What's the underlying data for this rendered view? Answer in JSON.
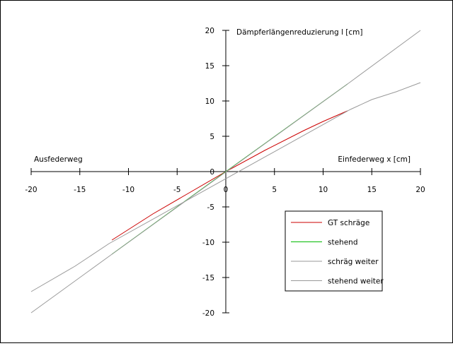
{
  "chart_data": {
    "type": "line",
    "title": "",
    "ylabel": "Dämpferlängenreduzierung l [cm]",
    "xlabel_right": "Einfederweg x [cm]",
    "xlabel_left": "Ausfederweg",
    "xlim": [
      -20,
      20
    ],
    "ylim": [
      -20,
      20
    ],
    "xticks": [
      {
        "value": -20,
        "label": "-20"
      },
      {
        "value": -15,
        "label": "-15"
      },
      {
        "value": -10,
        "label": "-10"
      },
      {
        "value": -5,
        "label": "-5"
      },
      {
        "value": 0,
        "label": "0"
      },
      {
        "value": 5,
        "label": "5"
      },
      {
        "value": 10,
        "label": "10"
      },
      {
        "value": 15,
        "label": "15"
      },
      {
        "value": 20,
        "label": "20"
      }
    ],
    "yticks": [
      {
        "value": 20,
        "label": "20"
      },
      {
        "value": 15,
        "label": "15"
      },
      {
        "value": 10,
        "label": "10"
      },
      {
        "value": 5,
        "label": "5"
      },
      {
        "value": 0,
        "label": "0"
      },
      {
        "value": -5,
        "label": "-5"
      },
      {
        "value": -10,
        "label": "-10"
      },
      {
        "value": -15,
        "label": "-15"
      },
      {
        "value": -20,
        "label": "-20"
      }
    ],
    "grid": false,
    "legend_position": "bottom-right",
    "series": [
      {
        "name": "GT schräge",
        "color": "#cc0000",
        "points": [
          [
            -11.7,
            -9.7
          ],
          [
            -7.5,
            -6.0
          ],
          [
            -4.0,
            -3.2
          ],
          [
            0,
            0
          ],
          [
            4.0,
            3.0
          ],
          [
            8.0,
            5.8
          ],
          [
            10.0,
            7.1
          ],
          [
            12.5,
            8.6
          ]
        ]
      },
      {
        "name": "stehend",
        "color": "#00bb00",
        "points": [
          [
            -11.7,
            -11.7
          ],
          [
            0,
            0
          ],
          [
            12.5,
            12.4
          ]
        ]
      },
      {
        "name": "schräg weiter",
        "color": "#999999",
        "points": [
          [
            -20,
            -17.0
          ],
          [
            -15.5,
            -13.4
          ],
          [
            -12.0,
            -10.2
          ],
          [
            12.8,
            8.8
          ],
          [
            15.0,
            10.2
          ],
          [
            17.5,
            11.3
          ],
          [
            20,
            12.6
          ]
        ]
      },
      {
        "name": "stehend weiter",
        "color": "#999999",
        "points": [
          [
            -20,
            -20
          ],
          [
            -12.2,
            -12.2
          ],
          [
            12.8,
            12.7
          ],
          [
            20,
            20
          ]
        ]
      }
    ]
  }
}
